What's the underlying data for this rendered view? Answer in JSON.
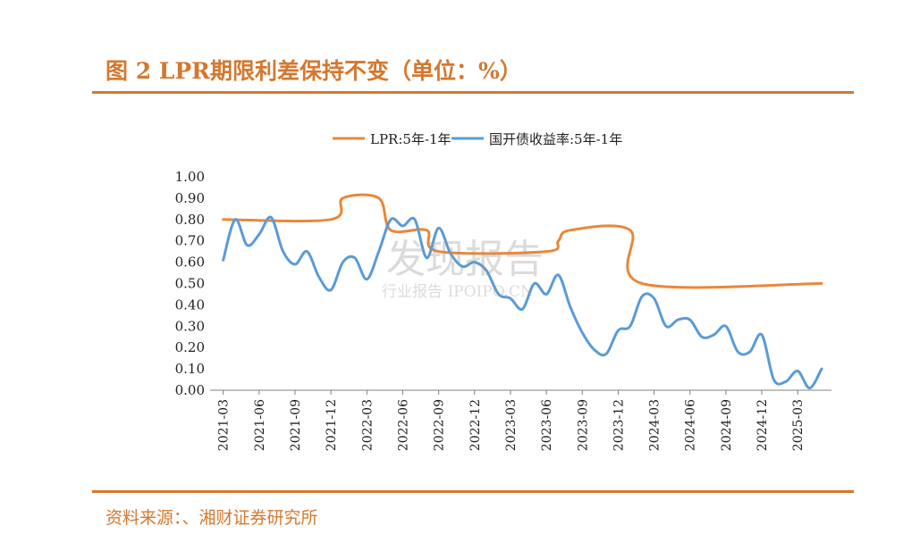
{
  "header": {
    "title": "图 2 LPR期限利差保持不变（单位：%）"
  },
  "footer": {
    "source": "资料来源：、湘财证券研究所"
  },
  "watermark": {
    "main": "发现报告",
    "sub": "行业报告 IPOIPO.CN"
  },
  "colors": {
    "accent": "#D4782F",
    "lpr": "#E8883A",
    "cdb": "#5B9BD5",
    "axis": "#808080"
  },
  "chart_data": {
    "type": "line",
    "title": "",
    "xlabel": "",
    "ylabel": "",
    "ylim": [
      0,
      1.0
    ],
    "yticks": [
      "1.00",
      "0.90",
      "0.80",
      "0.70",
      "0.60",
      "0.50",
      "0.40",
      "0.30",
      "0.20",
      "0.10",
      "0.00"
    ],
    "x_range": [
      "2021-03",
      "2025-05"
    ],
    "xticks": [
      "2021-03",
      "2021-06",
      "2021-09",
      "2021-12",
      "2022-03",
      "2022-06",
      "2022-09",
      "2022-12",
      "2023-03",
      "2023-06",
      "2023-09",
      "2023-12",
      "2024-03",
      "2024-06",
      "2024-09",
      "2024-12",
      "2025-03"
    ],
    "legend_position": "top",
    "series": [
      {
        "name": "LPR:5年-1年",
        "color": "#E8883A",
        "x": [
          "2021-03",
          "2021-12",
          "2022-01",
          "2022-04",
          "2022-05",
          "2022-08",
          "2022-09",
          "2023-06",
          "2023-07",
          "2023-08",
          "2024-01",
          "2024-02",
          "2025-05"
        ],
        "values": [
          0.8,
          0.8,
          0.9,
          0.9,
          0.75,
          0.75,
          0.65,
          0.65,
          0.7,
          0.75,
          0.75,
          0.5,
          0.5
        ]
      },
      {
        "name": "国开债收益率:5年-1年",
        "color": "#5B9BD5",
        "x": [
          "2021-03",
          "2021-04",
          "2021-05",
          "2021-06",
          "2021-07",
          "2021-08",
          "2021-09",
          "2021-10",
          "2021-11",
          "2021-12",
          "2022-01",
          "2022-02",
          "2022-03",
          "2022-04",
          "2022-05",
          "2022-06",
          "2022-07",
          "2022-08",
          "2022-09",
          "2022-10",
          "2022-11",
          "2022-12",
          "2023-01",
          "2023-02",
          "2023-03",
          "2023-04",
          "2023-05",
          "2023-06",
          "2023-07",
          "2023-08",
          "2023-09",
          "2023-10",
          "2023-11",
          "2023-12",
          "2024-01",
          "2024-02",
          "2024-03",
          "2024-04",
          "2024-05",
          "2024-06",
          "2024-07",
          "2024-08",
          "2024-09",
          "2024-10",
          "2024-11",
          "2024-12",
          "2025-01",
          "2025-02",
          "2025-03",
          "2025-04",
          "2025-05"
        ],
        "values": [
          0.61,
          0.8,
          0.68,
          0.73,
          0.81,
          0.65,
          0.59,
          0.65,
          0.53,
          0.47,
          0.6,
          0.62,
          0.52,
          0.65,
          0.8,
          0.77,
          0.8,
          0.62,
          0.76,
          0.64,
          0.58,
          0.6,
          0.56,
          0.45,
          0.43,
          0.38,
          0.5,
          0.45,
          0.54,
          0.39,
          0.27,
          0.19,
          0.17,
          0.28,
          0.3,
          0.44,
          0.43,
          0.3,
          0.33,
          0.33,
          0.25,
          0.26,
          0.3,
          0.18,
          0.18,
          0.26,
          0.05,
          0.04,
          0.09,
          0.01,
          0.1
        ]
      }
    ]
  }
}
